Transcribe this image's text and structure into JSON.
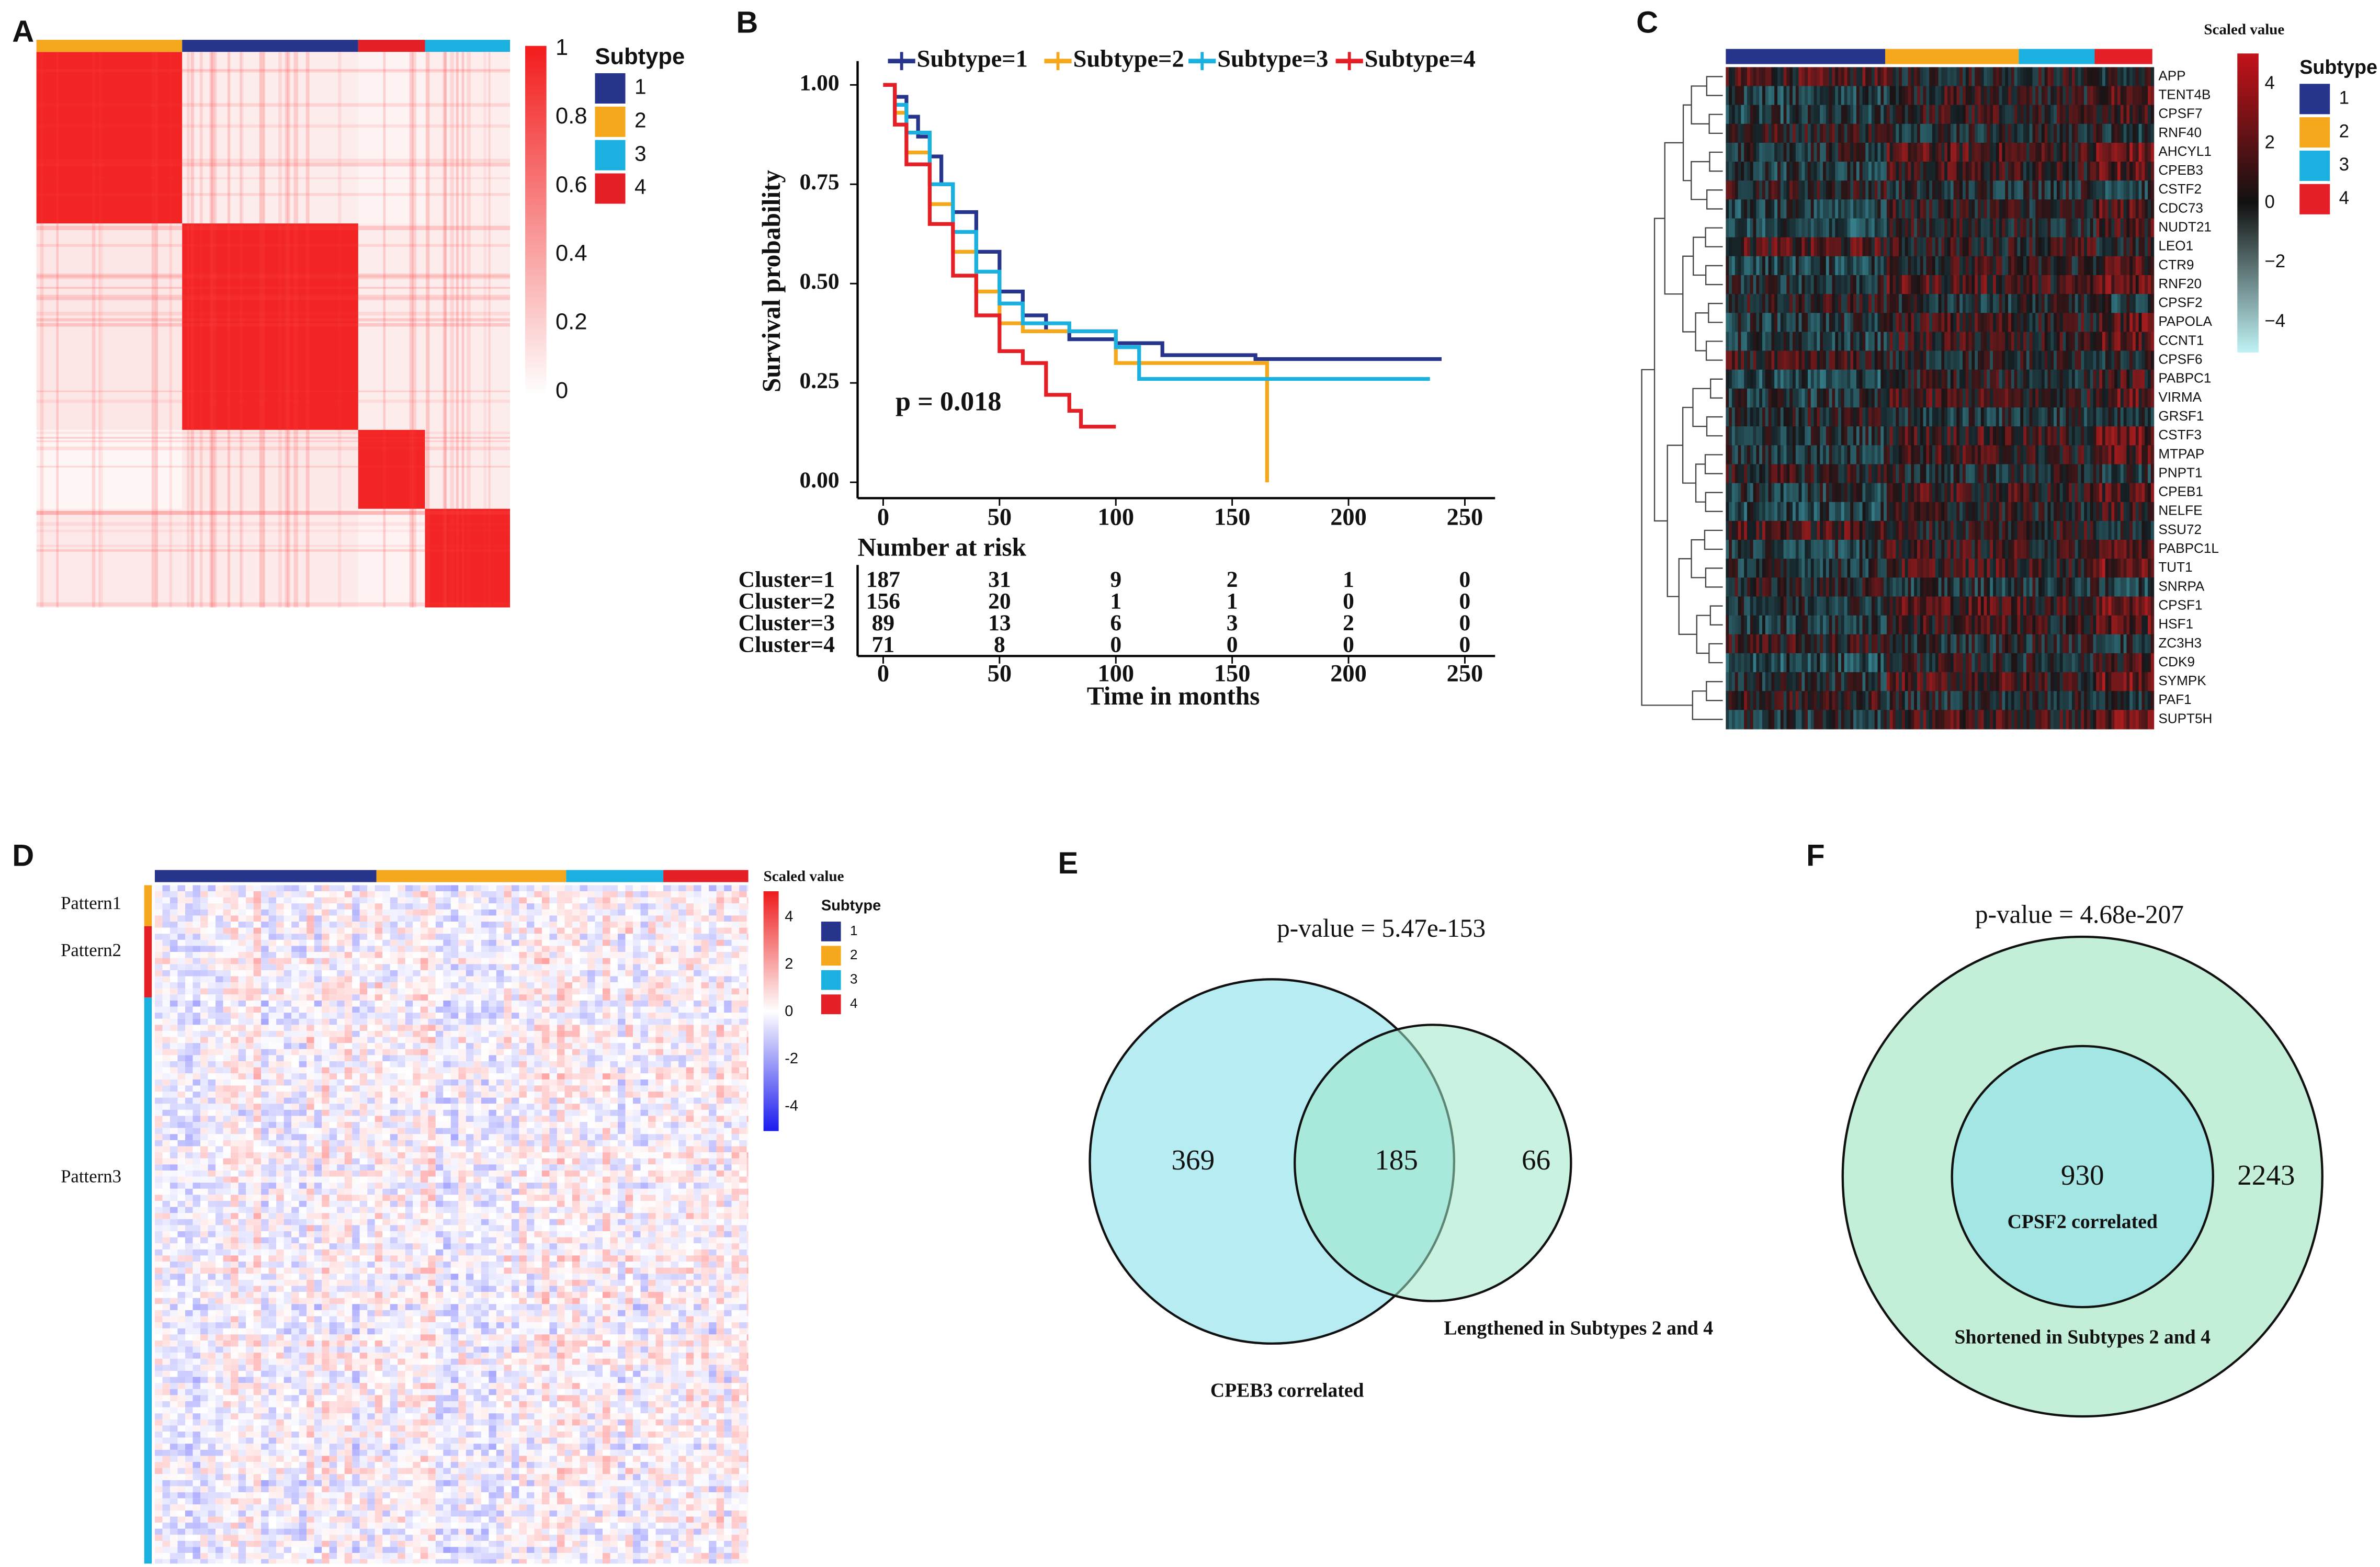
{
  "chart_data": {
    "type": "line",
    "panel_label": "B",
    "ylabel": "Survival probability",
    "xlabel": "Time in months",
    "annotation": "p = 0.018",
    "xlim": [
      -11,
      263
    ],
    "ylim": [
      -0.04,
      1.06
    ],
    "xticks": [
      0,
      50,
      100,
      150,
      200,
      250
    ],
    "yticks": [
      {
        "value": 0,
        "label": "0.00"
      },
      0.25,
      {
        "value": 0.5,
        "label": "0.50"
      },
      0.75,
      {
        "value": 1,
        "label": "1.00"
      }
    ],
    "series": [
      {
        "name": "Subtype=1",
        "color": "#27348b",
        "x": [
          0,
          5,
          10,
          15,
          20,
          25,
          30,
          40,
          50,
          60,
          70,
          80,
          100,
          120,
          160,
          240
        ],
        "values": [
          1,
          0.97,
          0.92,
          0.87,
          0.82,
          0.75,
          0.68,
          0.58,
          0.48,
          0.42,
          0.38,
          0.36,
          0.35,
          0.32,
          0.31,
          0.31
        ]
      },
      {
        "name": "Subtype=2",
        "color": "#f5a81c",
        "x": [
          0,
          5,
          10,
          20,
          30,
          40,
          50,
          60,
          80,
          100,
          160,
          165
        ],
        "values": [
          1,
          0.93,
          0.83,
          0.7,
          0.58,
          0.48,
          0.4,
          0.38,
          0.38,
          0.3,
          0.3,
          0
        ]
      },
      {
        "name": "Subtype=3",
        "color": "#1ab0e0",
        "x": [
          0,
          5,
          10,
          20,
          30,
          40,
          50,
          60,
          80,
          100,
          110,
          235
        ],
        "values": [
          1,
          0.95,
          0.88,
          0.75,
          0.63,
          0.53,
          0.45,
          0.4,
          0.38,
          0.34,
          0.26,
          0.26
        ]
      },
      {
        "name": "Subtype=4",
        "color": "#e41f26",
        "x": [
          0,
          5,
          10,
          20,
          30,
          40,
          50,
          60,
          70,
          80,
          85,
          100
        ],
        "values": [
          1,
          0.9,
          0.8,
          0.65,
          0.52,
          0.42,
          0.33,
          0.3,
          0.22,
          0.18,
          0.14,
          0.14
        ]
      }
    ],
    "risk_table": {
      "title": "Number at risk",
      "rows": [
        {
          "name": "Cluster=1",
          "color": "#27348b",
          "values": [
            187,
            31,
            9,
            2,
            1,
            0
          ]
        },
        {
          "name": "Cluster=2",
          "color": "#f5a81c",
          "values": [
            156,
            20,
            1,
            1,
            0,
            0
          ]
        },
        {
          "name": "Cluster=3",
          "color": "#1ab0e0",
          "values": [
            89,
            13,
            6,
            3,
            2,
            0
          ]
        },
        {
          "name": "Cluster=4",
          "color": "#e41f26",
          "values": [
            71,
            8,
            0,
            0,
            0,
            0
          ]
        }
      ]
    }
  },
  "panels": {
    "A": {
      "label": "A",
      "legend_title": "Subtype",
      "scale_ticks": [
        1,
        0.8,
        0.6,
        0.4,
        0.2,
        0
      ]
    },
    "C": {
      "label": "C",
      "scale_title": "Scaled value",
      "legend_title": "Subtype",
      "scale_ticks": [
        4,
        2,
        0,
        {
          "value": -2,
          "label": "−2"
        },
        {
          "value": -4,
          "label": "−4"
        }
      ],
      "genes": [
        "APP",
        "TENT4B",
        "CPSF7",
        "RNF40",
        "AHCYL1",
        "CPEB3",
        "CSTF2",
        "CDC73",
        "NUDT21",
        "LEO1",
        "CTR9",
        "RNF20",
        "CPSF2",
        "PAPOLA",
        "CCNT1",
        "CPSF6",
        "PABPC1",
        "VIRMA",
        "GRSF1",
        "CSTF3",
        "MTPAP",
        "PNPT1",
        "CPEB1",
        "NELFE",
        "SSU72",
        "PABPC1L",
        "TUT1",
        "SNRPA",
        "CPSF1",
        "HSF1",
        "ZC3H3",
        "CDK9",
        "SYMPK",
        "PAF1",
        "SUPT5H"
      ]
    },
    "D": {
      "label": "D",
      "scale_title": "Scaled value",
      "legend_title": "Subtype",
      "scale_ticks": [
        4,
        2,
        0,
        -2,
        -4
      ],
      "patterns": [
        "Pattern1",
        "Pattern2",
        "Pattern3"
      ]
    },
    "E": {
      "label": "E",
      "pvalue": "p-value = 5.47e-153",
      "left_only": "369",
      "overlap": "185",
      "right_only": "66",
      "left_set": "CPEB3 correlated",
      "right_set": "Lengthened in Subtypes 2 and 4"
    },
    "F": {
      "label": "F",
      "pvalue": "p-value = 4.68e-207",
      "inner": "930",
      "outer": "2243",
      "inner_set": "CPSF2 correlated",
      "outer_set": "Shortened in Subtypes 2 and 4"
    }
  },
  "subtypes": [
    {
      "name": "1",
      "color": "#27348b"
    },
    {
      "name": "2",
      "color": "#f5a81c"
    },
    {
      "name": "3",
      "color": "#1ab0e0"
    },
    {
      "name": "4",
      "color": "#e41f26"
    }
  ]
}
